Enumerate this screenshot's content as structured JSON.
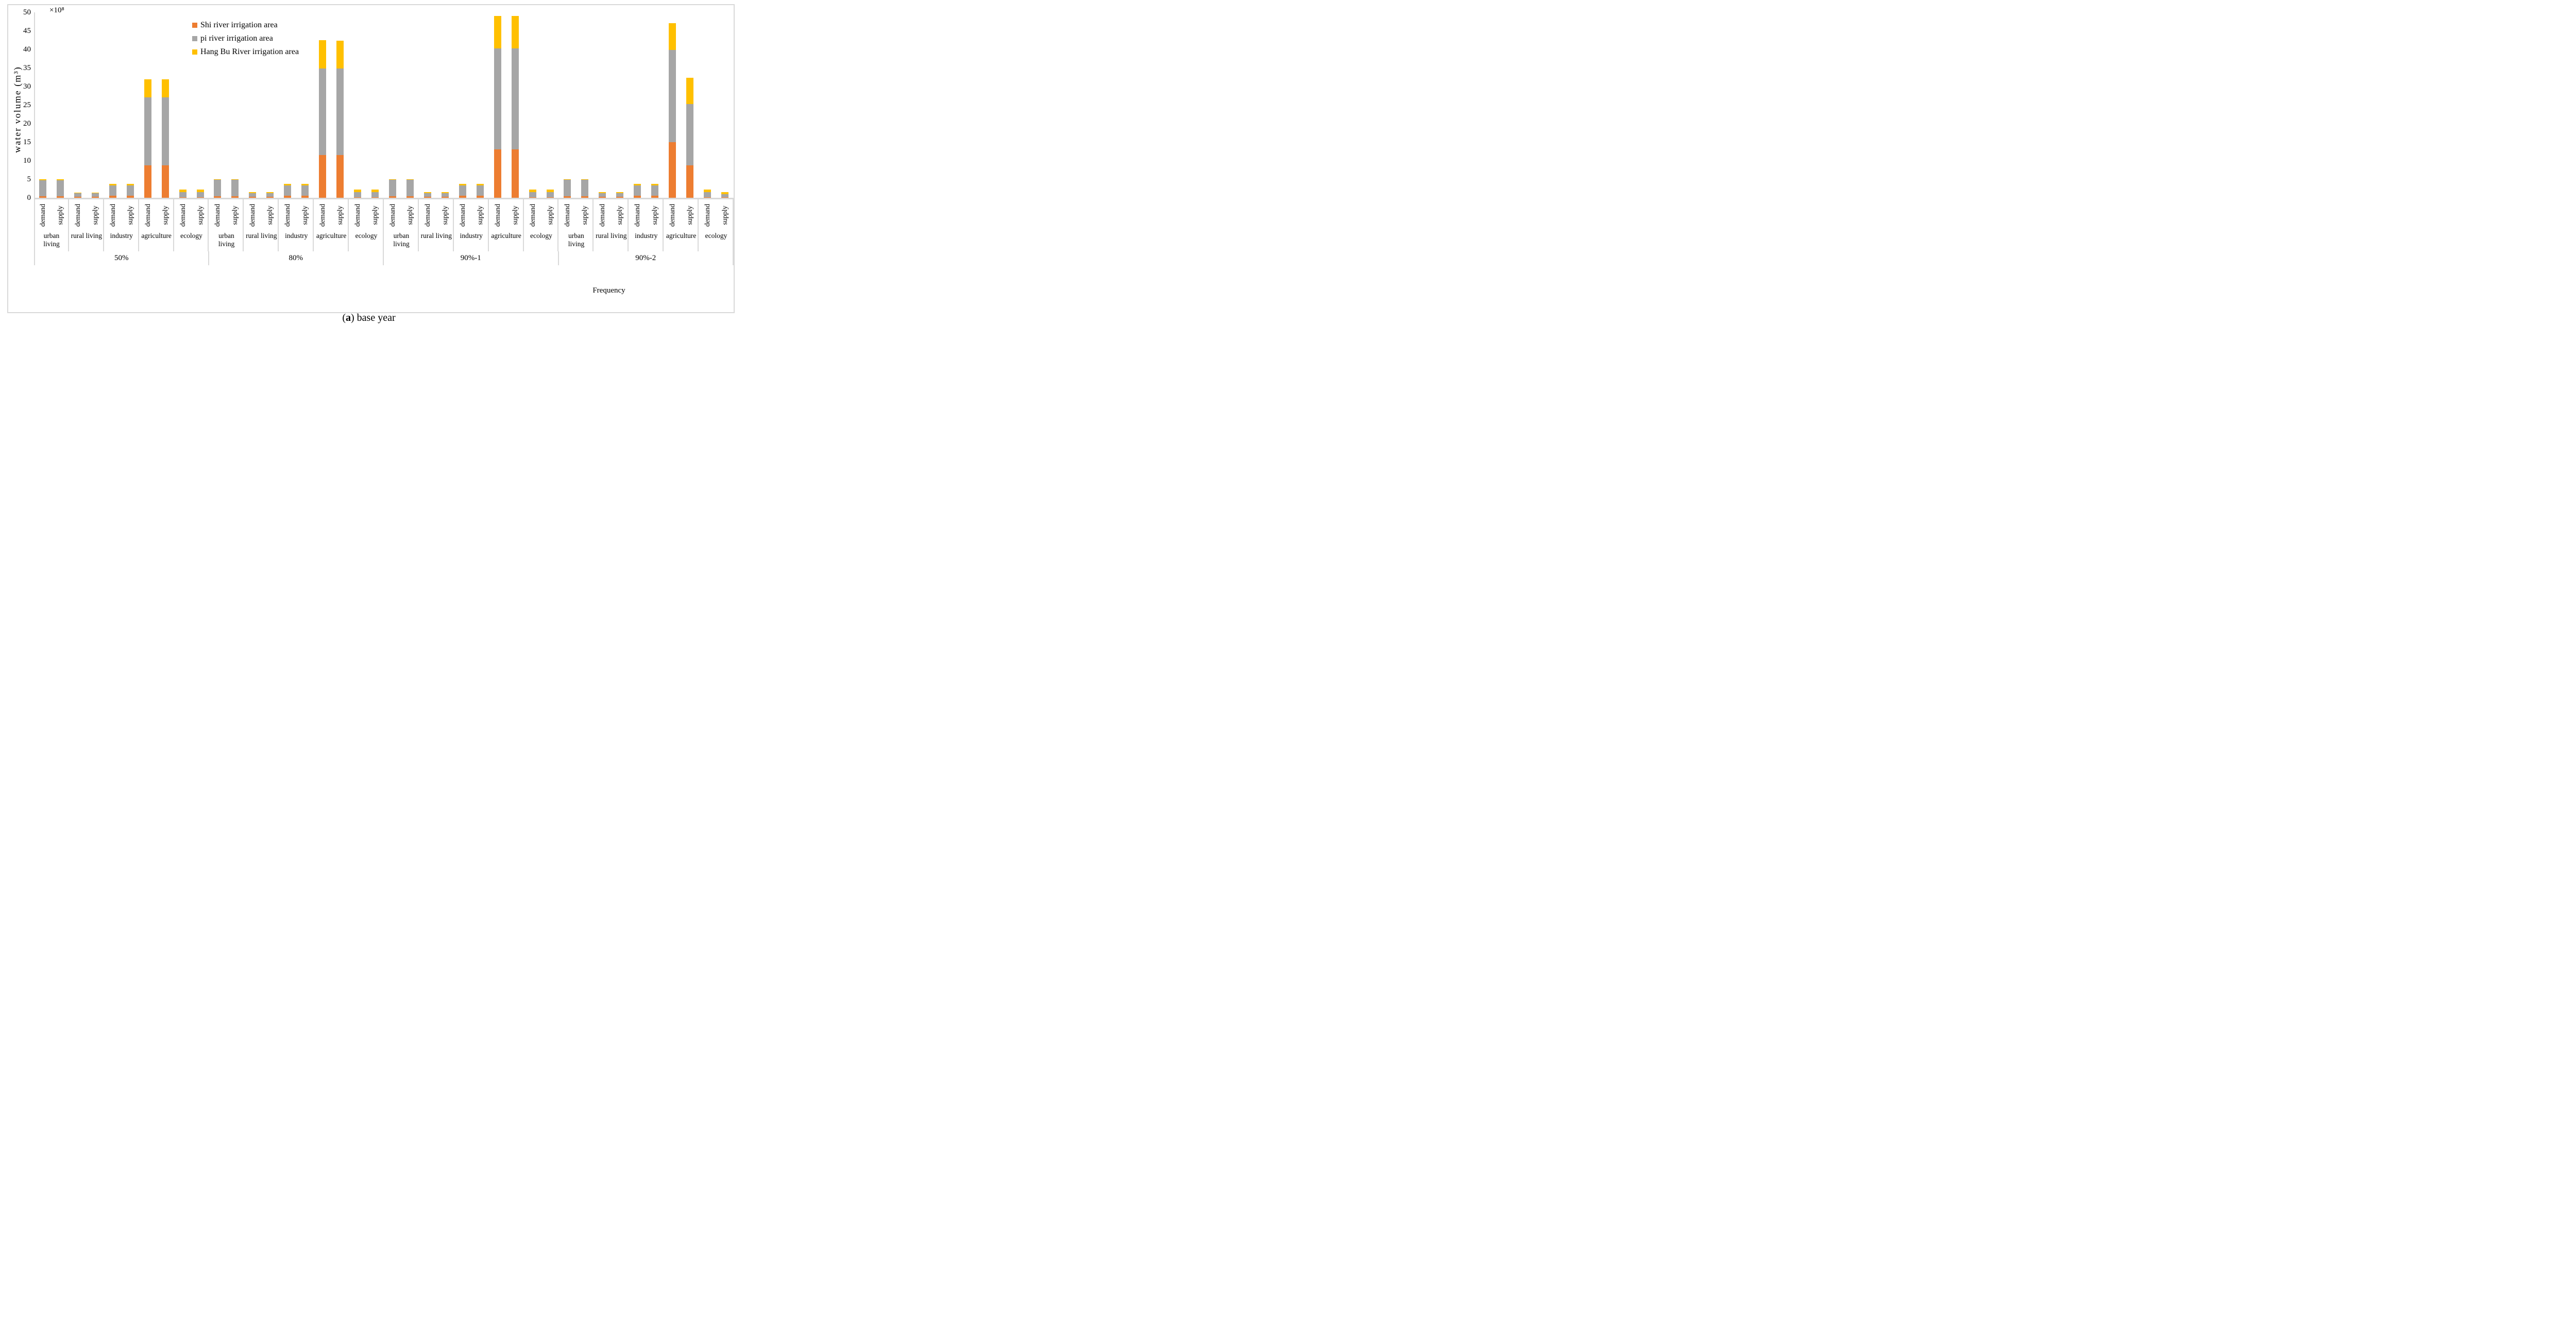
{
  "colors": {
    "shi_orange": "#ED7D31",
    "pi_gray": "#A6A6A6",
    "hangbu_yellow": "#FFC000",
    "frame_gray": "#D9D9D9",
    "text": "#000000"
  },
  "caption": {
    "open": "(",
    "letter": "a",
    "rest": ") base year"
  },
  "chart_data": {
    "type": "bar",
    "stacked": true,
    "title": "(a) base year",
    "ylabel": "water volume (m³)",
    "y_multiplier": "×10⁸",
    "xlabel": "Frequency",
    "ylim": [
      0,
      50
    ],
    "ytick_step": 5,
    "yticks": [
      0,
      5,
      10,
      15,
      20,
      25,
      30,
      35,
      40,
      45,
      50
    ],
    "grid": false,
    "legend_position": "top-center",
    "series": [
      {
        "key": "shi",
        "label": "Shi river irrigation area",
        "color": "#ED7D31"
      },
      {
        "key": "pi",
        "label": "pi river irrigation area",
        "color": "#A6A6A6"
      },
      {
        "key": "hangbu",
        "label": "Hang Bu River irrigation area",
        "color": "#FFC000"
      }
    ],
    "bar_types": [
      "demand",
      "supply"
    ],
    "groups": [
      {
        "label": "50%",
        "categories": [
          {
            "label": "urban\nliving",
            "bars": [
              {
                "type": "demand",
                "values": [
                  0.4,
                  4.35,
                  0.25
                ]
              },
              {
                "type": "supply",
                "values": [
                  0.4,
                  4.35,
                  0.25
                ]
              }
            ]
          },
          {
            "label": "rural living",
            "bars": [
              {
                "type": "demand",
                "values": [
                  0.25,
                  0.95,
                  0.2
                ]
              },
              {
                "type": "supply",
                "values": [
                  0.25,
                  0.95,
                  0.2
                ]
              }
            ]
          },
          {
            "label": "industry",
            "bars": [
              {
                "type": "demand",
                "values": [
                  0.5,
                  2.85,
                  0.35
                ]
              },
              {
                "type": "supply",
                "values": [
                  0.5,
                  2.85,
                  0.35
                ]
              }
            ]
          },
          {
            "label": "agriculture",
            "bars": [
              {
                "type": "demand",
                "values": [
                  8.8,
                  18.3,
                  4.9
                ]
              },
              {
                "type": "supply",
                "values": [
                  8.8,
                  18.3,
                  4.9
                ]
              }
            ]
          },
          {
            "label": "ecology",
            "bars": [
              {
                "type": "demand",
                "values": [
                  0.15,
                  1.35,
                  0.7
                ]
              },
              {
                "type": "supply",
                "values": [
                  0.15,
                  1.35,
                  0.7
                ]
              }
            ]
          }
        ]
      },
      {
        "label": "80%",
        "categories": [
          {
            "label": "urban\nliving",
            "bars": [
              {
                "type": "demand",
                "values": [
                  0.4,
                  4.4,
                  0.25
                ]
              },
              {
                "type": "supply",
                "values": [
                  0.4,
                  4.4,
                  0.25
                ]
              }
            ]
          },
          {
            "label": "rural living",
            "bars": [
              {
                "type": "demand",
                "values": [
                  0.25,
                  1.0,
                  0.25
                ]
              },
              {
                "type": "supply",
                "values": [
                  0.25,
                  1.0,
                  0.25
                ]
              }
            ]
          },
          {
            "label": "industry",
            "bars": [
              {
                "type": "demand",
                "values": [
                  0.5,
                  2.85,
                  0.35
                ]
              },
              {
                "type": "supply",
                "values": [
                  0.5,
                  2.85,
                  0.35
                ]
              }
            ]
          },
          {
            "label": "agriculture",
            "bars": [
              {
                "type": "demand",
                "values": [
                  11.5,
                  23.3,
                  7.7
                ]
              },
              {
                "type": "supply",
                "values": [
                  11.5,
                  23.3,
                  7.6
                ]
              }
            ]
          },
          {
            "label": "ecology",
            "bars": [
              {
                "type": "demand",
                "values": [
                  0.15,
                  1.35,
                  0.7
                ]
              },
              {
                "type": "supply",
                "values": [
                  0.15,
                  1.35,
                  0.7
                ]
              }
            ]
          }
        ]
      },
      {
        "label": "90%-1",
        "categories": [
          {
            "label": "urban\nliving",
            "bars": [
              {
                "type": "demand",
                "values": [
                  0.4,
                  4.4,
                  0.25
                ]
              },
              {
                "type": "supply",
                "values": [
                  0.4,
                  4.4,
                  0.25
                ]
              }
            ]
          },
          {
            "label": "rural living",
            "bars": [
              {
                "type": "demand",
                "values": [
                  0.25,
                  1.0,
                  0.25
                ]
              },
              {
                "type": "supply",
                "values": [
                  0.25,
                  1.0,
                  0.25
                ]
              }
            ]
          },
          {
            "label": "industry",
            "bars": [
              {
                "type": "demand",
                "values": [
                  0.5,
                  2.85,
                  0.35
                ]
              },
              {
                "type": "supply",
                "values": [
                  0.5,
                  2.85,
                  0.35
                ]
              }
            ]
          },
          {
            "label": "agriculture",
            "bars": [
              {
                "type": "demand",
                "values": [
                  13.0,
                  27.3,
                  8.7
                ]
              },
              {
                "type": "supply",
                "values": [
                  13.0,
                  27.3,
                  8.7
                ]
              }
            ]
          },
          {
            "label": "ecology",
            "bars": [
              {
                "type": "demand",
                "values": [
                  0.15,
                  1.35,
                  0.7
                ]
              },
              {
                "type": "supply",
                "values": [
                  0.15,
                  1.35,
                  0.7
                ]
              }
            ]
          }
        ]
      },
      {
        "label": "90%-2",
        "categories": [
          {
            "label": "urban\nliving",
            "bars": [
              {
                "type": "demand",
                "values": [
                  0.4,
                  4.4,
                  0.25
                ]
              },
              {
                "type": "supply",
                "values": [
                  0.4,
                  4.4,
                  0.25
                ]
              }
            ]
          },
          {
            "label": "rural living",
            "bars": [
              {
                "type": "demand",
                "values": [
                  0.25,
                  1.0,
                  0.25
                ]
              },
              {
                "type": "supply",
                "values": [
                  0.25,
                  1.0,
                  0.25
                ]
              }
            ]
          },
          {
            "label": "industry",
            "bars": [
              {
                "type": "demand",
                "values": [
                  0.5,
                  2.85,
                  0.35
                ]
              },
              {
                "type": "supply",
                "values": [
                  0.5,
                  2.85,
                  0.35
                ]
              }
            ]
          },
          {
            "label": "agriculture",
            "bars": [
              {
                "type": "demand",
                "values": [
                  15.0,
                  24.8,
                  7.3
                ]
              },
              {
                "type": "supply",
                "values": [
                  8.8,
                  16.5,
                  7.1
                ]
              }
            ]
          },
          {
            "label": "ecology",
            "bars": [
              {
                "type": "demand",
                "values": [
                  0.15,
                  1.35,
                  0.7
                ]
              },
              {
                "type": "supply",
                "values": [
                  0.1,
                  0.85,
                  0.55
                ]
              }
            ]
          }
        ]
      }
    ]
  }
}
